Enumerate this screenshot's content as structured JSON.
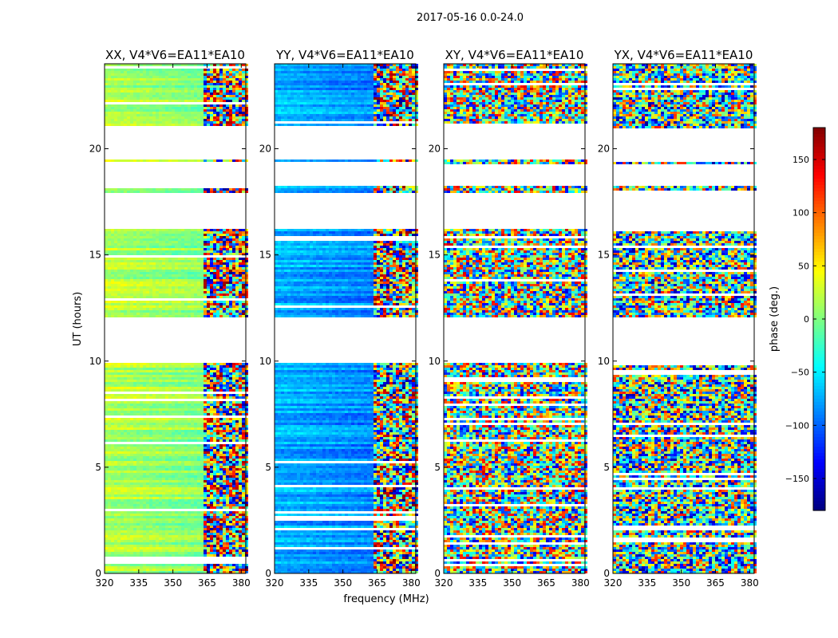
{
  "figure": {
    "suptitle": "2017-05-16 0.0-24.0"
  },
  "chart_data": {
    "type": "heatmap",
    "colormap": "jet",
    "shared_xlabel": "frequency (MHz)",
    "shared_ylabel": "UT (hours)",
    "xlim": [
      320,
      382
    ],
    "ylim": [
      0,
      24
    ],
    "xticks": [
      320,
      335,
      350,
      365,
      380
    ],
    "yticks": [
      0,
      5,
      10,
      15,
      20
    ],
    "panels": [
      {
        "title": "XX, V4*V6=EA11*EA10",
        "pattern": "smooth",
        "base_phase": 20
      },
      {
        "title": "YY, V4*V6=EA11*EA10",
        "pattern": "smooth",
        "base_phase": -70
      },
      {
        "title": "XY, V4*V6=EA11*EA10",
        "pattern": "noisy",
        "base_phase": 0
      },
      {
        "title": "YX, V4*V6=EA11*EA10",
        "pattern": "noisy",
        "base_phase": -20
      }
    ],
    "data_gaps_ut": [
      [
        10.0,
        12.1
      ],
      [
        16.3,
        18.0
      ],
      [
        18.3,
        19.3
      ],
      [
        19.6,
        21.0
      ]
    ],
    "colorbar": {
      "label": "phase (deg.)",
      "range": [
        -180,
        180
      ],
      "ticks": [
        150,
        100,
        50,
        0,
        -50,
        -100,
        -150
      ],
      "tick_labels": [
        "150",
        "100",
        "50",
        "0",
        "−50",
        "−100",
        "−150"
      ]
    }
  }
}
